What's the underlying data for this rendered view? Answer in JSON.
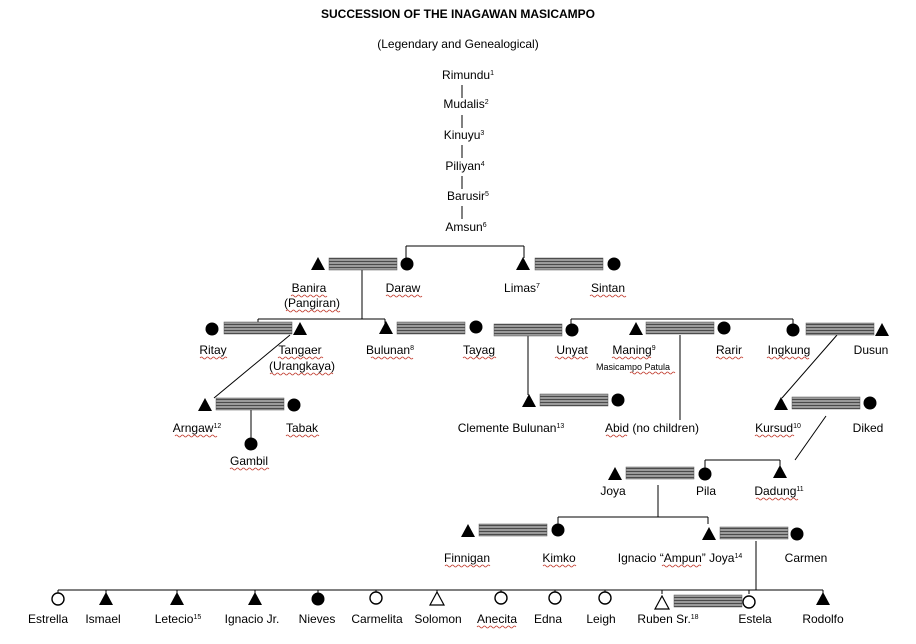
{
  "title": "SUCCESSION OF THE INAGAWAN MASICAMPO",
  "subtitle": "(Legendary and Genealogical)",
  "legendary_line": [
    {
      "name": "Rimundu",
      "sup": "1"
    },
    {
      "name": "Mudalis",
      "sup": "2"
    },
    {
      "name": "Kinuyu",
      "sup": "3"
    },
    {
      "name": "Piliyan",
      "sup": "4"
    },
    {
      "name": "Barusir",
      "sup": "5"
    },
    {
      "name": "Amsun",
      "sup": "6"
    }
  ],
  "people": {
    "banira": {
      "name": "Banira",
      "sup": "",
      "sex": "male"
    },
    "pangiran": {
      "name": "(Pangiran)"
    },
    "daraw": {
      "name": "Daraw",
      "sup": "",
      "sex": "female"
    },
    "limas": {
      "name": "Limas",
      "sup": "7",
      "sex": "male"
    },
    "sintan": {
      "name": "Sintan",
      "sup": "",
      "sex": "female"
    },
    "ritay": {
      "name": "Ritay",
      "sup": "",
      "sex": "female"
    },
    "tangaer": {
      "name": "Tangaer",
      "sup": "",
      "sex": "male"
    },
    "urangkaya": {
      "name": "(Urangkaya)"
    },
    "bulunan": {
      "name": "Bulunan",
      "sup": "8",
      "sex": "male"
    },
    "tayag": {
      "name": "Tayag",
      "sup": "",
      "sex": "female"
    },
    "unyat": {
      "name": "Unyat",
      "sup": "",
      "sex": "female"
    },
    "maning": {
      "name": "Maning",
      "sup": "9",
      "sex": "male"
    },
    "masicampo_patula": {
      "name": "Masicampo Patula"
    },
    "rarir": {
      "name": "Rarir",
      "sup": "",
      "sex": "female"
    },
    "ingkung": {
      "name": "Ingkung",
      "sup": "",
      "sex": "female"
    },
    "dusun": {
      "name": "Dusun",
      "sup": "",
      "sex": "male"
    },
    "arngaw": {
      "name": "Arngaw",
      "sup": "12",
      "sex": "male"
    },
    "tabak": {
      "name": "Tabak",
      "sup": "",
      "sex": "female"
    },
    "gambil": {
      "name": "Gambil",
      "sup": "",
      "sex": "female"
    },
    "clemente": {
      "name": "Clemente Bulunan",
      "sup": "13",
      "sex": "male"
    },
    "abid": {
      "name": "Abid (no children)",
      "sup": ""
    },
    "kursud": {
      "name": "Kursud",
      "sup": "10",
      "sex": "male"
    },
    "diked": {
      "name": "Diked",
      "sup": "",
      "sex": "female"
    },
    "joya": {
      "name": "Joya",
      "sup": "",
      "sex": "male"
    },
    "pila": {
      "name": "Pila",
      "sup": "",
      "sex": "female"
    },
    "dadung": {
      "name": "Dadung",
      "sup": "11",
      "sex": "male"
    },
    "finnigan": {
      "name": "Finnigan",
      "sup": "",
      "sex": "male"
    },
    "kimko": {
      "name": "Kimko",
      "sup": "",
      "sex": "female"
    },
    "ignacio_ampun": {
      "name": "Ignacio “Ampun” Joya",
      "sup": "14",
      "sex": "male"
    },
    "carmen": {
      "name": "Carmen",
      "sup": "",
      "sex": "female"
    }
  },
  "children": [
    {
      "name": "Estrella",
      "sup": "",
      "symbol": "circle-open"
    },
    {
      "name": "Ismael",
      "sup": "",
      "symbol": "triangle-filled"
    },
    {
      "name": "Letecio",
      "sup": "15",
      "symbol": "triangle-filled"
    },
    {
      "name": "Ignacio Jr.",
      "sup": "",
      "symbol": "triangle-filled"
    },
    {
      "name": "Nieves",
      "sup": "",
      "symbol": "circle-filled"
    },
    {
      "name": "Carmelita",
      "sup": "",
      "symbol": "circle-open"
    },
    {
      "name": "Solomon",
      "sup": "",
      "symbol": "triangle-open"
    },
    {
      "name": "Anecita",
      "sup": "",
      "symbol": "circle-open"
    },
    {
      "name": "Edna",
      "sup": "",
      "symbol": "circle-open"
    },
    {
      "name": "Leigh",
      "sup": "",
      "symbol": "circle-open"
    },
    {
      "name": "Ruben Sr.",
      "sup": "18",
      "symbol": "triangle-open"
    },
    {
      "name": "Estela",
      "sup": "",
      "symbol": "circle-open"
    },
    {
      "name": "Rodolfo",
      "sup": "",
      "symbol": "triangle-filled"
    }
  ],
  "symbol_legend": {
    "male": "triangle-icon",
    "female": "circle-icon",
    "marriage": "hatched-bar"
  }
}
